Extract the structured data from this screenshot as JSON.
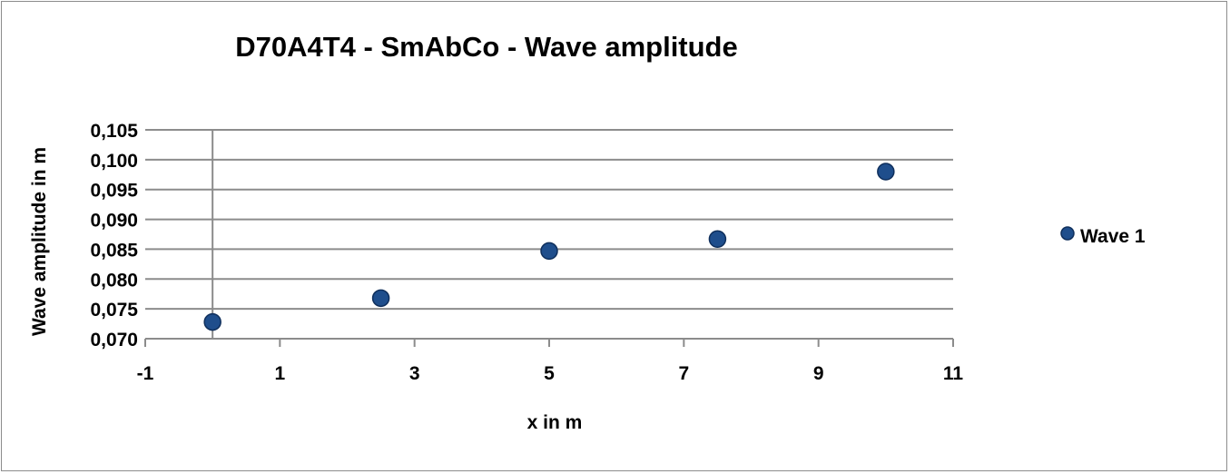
{
  "chart_data": {
    "type": "scatter",
    "title": "D70A4T4  - SmAbCo - Wave amplitude",
    "xlabel": "x in m",
    "ylabel": "Wave amplitude in m",
    "xlim": [
      -1,
      11
    ],
    "ylim": [
      0.07,
      0.105
    ],
    "xticks": [
      "-1",
      "1",
      "3",
      "5",
      "7",
      "9",
      "11"
    ],
    "yticks": [
      "0,070",
      "0,075",
      "0,080",
      "0,085",
      "0,090",
      "0,095",
      "0,100",
      "0,105"
    ],
    "grid": "horizontal",
    "legend_position": "right",
    "series": [
      {
        "name": "Wave 1",
        "color": "#1f4e8c",
        "points": [
          {
            "x": 0,
            "y": 0.0728
          },
          {
            "x": 2.5,
            "y": 0.0768
          },
          {
            "x": 5,
            "y": 0.0847
          },
          {
            "x": 7.5,
            "y": 0.0867
          },
          {
            "x": 10,
            "y": 0.098
          }
        ]
      }
    ]
  }
}
